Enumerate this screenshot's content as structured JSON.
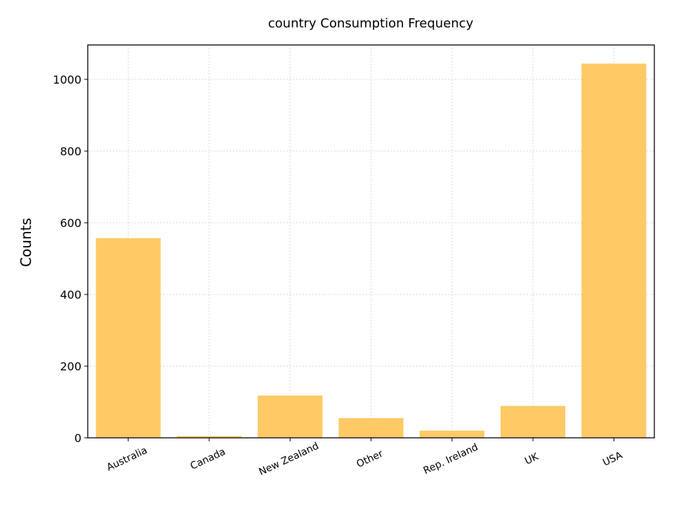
{
  "chart_data": {
    "type": "bar",
    "title": "country Consumption Frequency",
    "xlabel": "",
    "ylabel": "Counts",
    "categories": [
      "Australia",
      "Canada",
      "New Zealand",
      "Other",
      "Rep. Ireland",
      "UK",
      "USA"
    ],
    "values": [
      557,
      5,
      118,
      55,
      20,
      89,
      1044
    ],
    "ylim": [
      0,
      1096
    ],
    "yticks": [
      0,
      200,
      400,
      600,
      800,
      1000
    ],
    "grid": true,
    "bar_color": "#ffc966"
  }
}
